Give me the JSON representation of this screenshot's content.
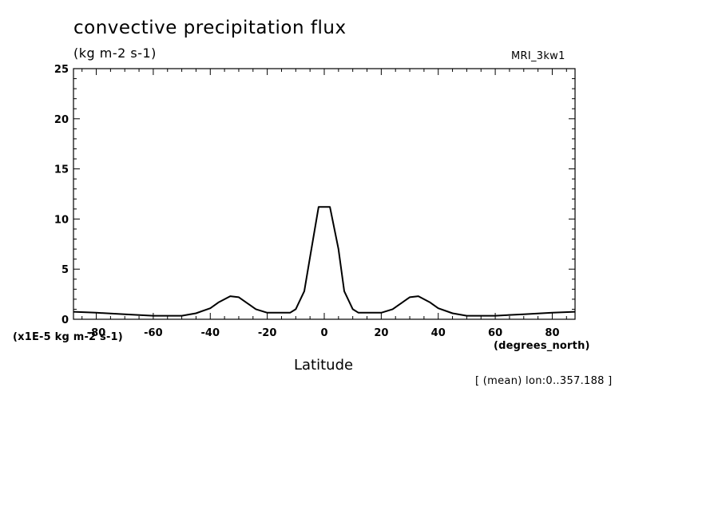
{
  "chart_data": {
    "type": "line",
    "title": "convective precipitation flux",
    "units_label": "(kg m-2 s-1)",
    "model_label": "MRI_3kw1",
    "y_scale_label": "(x1E-5 kg m-2 s-1)",
    "x_units_label": "(degrees_north)",
    "xlabel": "Latitude",
    "footnote": "[ (mean) lon:0..357.188 ]",
    "xlim": [
      -88,
      88
    ],
    "ylim": [
      0,
      25
    ],
    "x_ticks": [
      -80,
      -60,
      -40,
      -20,
      0,
      20,
      40,
      60,
      80
    ],
    "x_tick_labels": [
      "-80",
      "-60",
      "-40",
      "-20",
      "0",
      "20",
      "40",
      "60",
      "80"
    ],
    "y_ticks": [
      0,
      5,
      10,
      15,
      20,
      25
    ],
    "y_tick_labels": [
      "0",
      "5",
      "10",
      "15",
      "20",
      "25"
    ],
    "grid": false,
    "series": [
      {
        "x": [
          -88,
          -80,
          -70,
          -60,
          -50,
          -45,
          -40,
          -37,
          -33,
          -30,
          -27,
          -24,
          -20,
          -15,
          -12,
          -10,
          -7,
          -5,
          -2,
          0,
          2,
          5,
          7,
          10,
          12,
          15,
          20,
          24,
          27,
          30,
          33,
          37,
          40,
          45,
          50,
          60,
          70,
          80,
          88
        ],
        "y": [
          0.75,
          0.65,
          0.5,
          0.35,
          0.35,
          0.6,
          1.1,
          1.7,
          2.3,
          2.2,
          1.6,
          1.0,
          0.65,
          0.65,
          0.65,
          1.0,
          2.8,
          6.2,
          11.2,
          11.2,
          11.2,
          7.0,
          2.8,
          1.0,
          0.65,
          0.65,
          0.65,
          1.0,
          1.6,
          2.2,
          2.3,
          1.7,
          1.1,
          0.6,
          0.35,
          0.35,
          0.5,
          0.65,
          0.75
        ]
      }
    ]
  }
}
